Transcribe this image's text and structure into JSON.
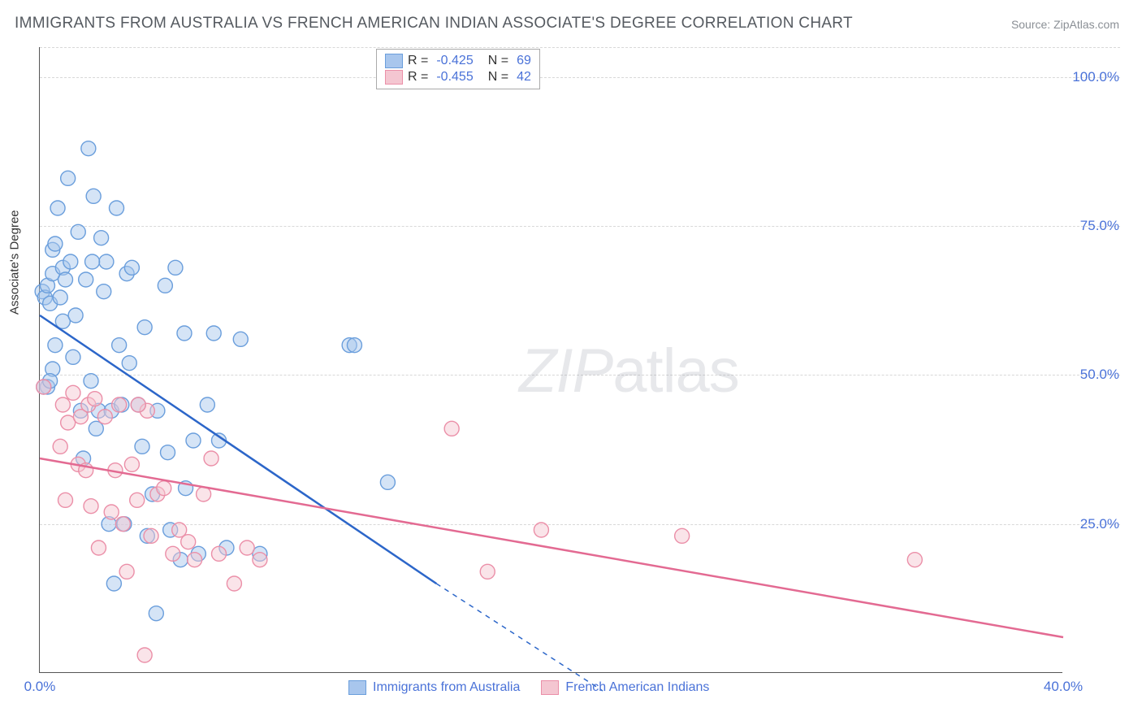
{
  "title": "IMMIGRANTS FROM AUSTRALIA VS FRENCH AMERICAN INDIAN ASSOCIATE'S DEGREE CORRELATION CHART",
  "source_label": "Source: ZipAtlas.com",
  "y_axis_label": "Associate's Degree",
  "watermark": {
    "part1": "ZIP",
    "part2": "atlas"
  },
  "chart": {
    "type": "scatter",
    "xlim": [
      0,
      40
    ],
    "ylim": [
      0,
      105
    ],
    "x_ticks": [
      {
        "v": 0,
        "label": "0.0%"
      },
      {
        "v": 40,
        "label": "40.0%"
      }
    ],
    "y_gridlines": [
      25,
      50,
      75,
      100,
      105
    ],
    "y_tick_labels": [
      {
        "v": 25,
        "label": "25.0%"
      },
      {
        "v": 50,
        "label": "50.0%"
      },
      {
        "v": 75,
        "label": "75.0%"
      },
      {
        "v": 100,
        "label": "100.0%"
      }
    ],
    "background_color": "#ffffff",
    "grid_color": "#d8d8d8",
    "axis_color": "#555555",
    "label_color": "#4a72d8",
    "marker_radius": 9,
    "marker_opacity": 0.48,
    "line_width": 2.5,
    "series": [
      {
        "name": "Immigrants from Australia",
        "fill": "#a8c6ed",
        "stroke": "#6a9edc",
        "line_color": "#2c66c9",
        "R": "-0.425",
        "N": "69",
        "trend": {
          "x1": 0,
          "y1": 60,
          "x2": 15.5,
          "y2": 15,
          "dash_to_x": 22,
          "dash_to_y": -3
        },
        "points": [
          [
            0.1,
            64
          ],
          [
            0.2,
            63
          ],
          [
            0.3,
            48
          ],
          [
            0.3,
            65
          ],
          [
            0.4,
            62
          ],
          [
            0.5,
            71
          ],
          [
            0.5,
            51
          ],
          [
            0.5,
            67
          ],
          [
            0.6,
            55
          ],
          [
            0.6,
            72
          ],
          [
            0.7,
            78
          ],
          [
            0.8,
            63
          ],
          [
            0.9,
            68
          ],
          [
            0.9,
            59
          ],
          [
            1.0,
            66
          ],
          [
            1.1,
            83
          ],
          [
            1.2,
            69
          ],
          [
            1.3,
            53
          ],
          [
            1.4,
            60
          ],
          [
            1.5,
            74
          ],
          [
            1.6,
            44
          ],
          [
            1.7,
            36
          ],
          [
            1.8,
            66
          ],
          [
            1.9,
            88
          ],
          [
            2.0,
            49
          ],
          [
            2.1,
            80
          ],
          [
            2.2,
            41
          ],
          [
            2.3,
            44
          ],
          [
            2.4,
            73
          ],
          [
            2.5,
            64
          ],
          [
            2.6,
            69
          ],
          [
            2.7,
            25
          ],
          [
            2.8,
            44
          ],
          [
            2.9,
            15
          ],
          [
            3.0,
            78
          ],
          [
            3.1,
            55
          ],
          [
            3.2,
            45
          ],
          [
            3.3,
            25
          ],
          [
            3.4,
            67
          ],
          [
            3.5,
            52
          ],
          [
            3.6,
            68
          ],
          [
            3.85,
            45
          ],
          [
            4.0,
            38
          ],
          [
            4.1,
            58
          ],
          [
            4.2,
            23
          ],
          [
            4.4,
            30
          ],
          [
            4.55,
            10
          ],
          [
            4.6,
            44
          ],
          [
            4.9,
            65
          ],
          [
            5.0,
            37
          ],
          [
            5.1,
            24
          ],
          [
            5.3,
            68
          ],
          [
            5.5,
            19
          ],
          [
            5.65,
            57
          ],
          [
            5.7,
            31
          ],
          [
            6.0,
            39
          ],
          [
            6.2,
            20
          ],
          [
            6.55,
            45
          ],
          [
            6.8,
            57
          ],
          [
            7.0,
            39
          ],
          [
            7.3,
            21
          ],
          [
            7.85,
            56
          ],
          [
            8.6,
            20
          ],
          [
            12.1,
            55
          ],
          [
            12.3,
            55
          ],
          [
            13.6,
            32
          ],
          [
            0.15,
            48
          ],
          [
            0.4,
            49
          ],
          [
            2.05,
            69
          ]
        ]
      },
      {
        "name": "French American Indians",
        "fill": "#f4c6d1",
        "stroke": "#eb8fa8",
        "line_color": "#e36a92",
        "R": "-0.455",
        "N": "42",
        "trend": {
          "x1": 0,
          "y1": 36,
          "x2": 40,
          "y2": 6
        },
        "points": [
          [
            0.15,
            48
          ],
          [
            0.8,
            38
          ],
          [
            0.9,
            45
          ],
          [
            1.0,
            29
          ],
          [
            1.1,
            42
          ],
          [
            1.3,
            47
          ],
          [
            1.5,
            35
          ],
          [
            1.6,
            43
          ],
          [
            1.8,
            34
          ],
          [
            1.9,
            45
          ],
          [
            2.0,
            28
          ],
          [
            2.15,
            46
          ],
          [
            2.3,
            21
          ],
          [
            2.55,
            43
          ],
          [
            2.8,
            27
          ],
          [
            2.95,
            34
          ],
          [
            3.1,
            45
          ],
          [
            3.25,
            25
          ],
          [
            3.4,
            17
          ],
          [
            3.6,
            35
          ],
          [
            3.8,
            29
          ],
          [
            4.1,
            3
          ],
          [
            4.2,
            44
          ],
          [
            4.35,
            23
          ],
          [
            4.6,
            30
          ],
          [
            4.85,
            31
          ],
          [
            5.2,
            20
          ],
          [
            5.45,
            24
          ],
          [
            5.8,
            22
          ],
          [
            6.05,
            19
          ],
          [
            6.4,
            30
          ],
          [
            6.7,
            36
          ],
          [
            7.0,
            20
          ],
          [
            7.6,
            15
          ],
          [
            8.1,
            21
          ],
          [
            8.6,
            19
          ],
          [
            16.1,
            41
          ],
          [
            17.5,
            17
          ],
          [
            19.6,
            24
          ],
          [
            25.1,
            23
          ],
          [
            34.2,
            19
          ],
          [
            3.85,
            45
          ]
        ]
      }
    ],
    "legend_bottom": [
      {
        "label": "Immigrants from Australia",
        "fill": "#a8c6ed",
        "stroke": "#6a9edc"
      },
      {
        "label": "French American Indians",
        "fill": "#f4c6d1",
        "stroke": "#eb8fa8"
      }
    ]
  }
}
